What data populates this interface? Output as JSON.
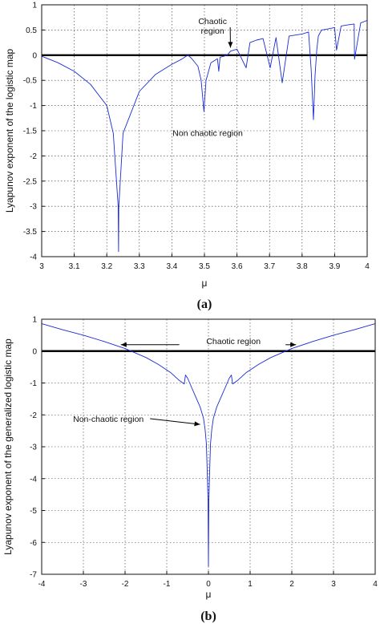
{
  "chart_data": [
    {
      "type": "line",
      "panel_caption": "(a)",
      "xlabel": "μ",
      "ylabel": "Lyapunov exponent of the logistic map",
      "xlim": [
        3,
        4
      ],
      "ylim": [
        -4,
        1
      ],
      "xticks": [
        "3",
        "3.1",
        "3.2",
        "3.3",
        "3.4",
        "3.5",
        "3.6",
        "3.7",
        "3.8",
        "3.9",
        "4"
      ],
      "yticks": [
        "1",
        "0.5",
        "0",
        "-0.5",
        "-1",
        "-1.5",
        "-2",
        "-2.5",
        "-3",
        "-3.5",
        "-4"
      ],
      "grid": true,
      "reference_line_y": 0,
      "annotations": [
        {
          "text": "Chaotic region",
          "lines": [
            "Chaotic",
            "region"
          ],
          "arrow_to": [
            3.58,
            0.15
          ]
        },
        {
          "text": "Non chaotic region",
          "at": [
            3.51,
            -1.6
          ]
        }
      ],
      "series": [
        {
          "color": "#1a2bd6",
          "x": [
            3.0,
            3.05,
            3.1,
            3.15,
            3.2,
            3.22,
            3.235,
            3.2361,
            3.237,
            3.25,
            3.3,
            3.35,
            3.4,
            3.43,
            3.449,
            3.46,
            3.48,
            3.49,
            3.4986,
            3.505,
            3.52,
            3.54,
            3.544,
            3.548,
            3.56,
            3.5699,
            3.58,
            3.6,
            3.628,
            3.64,
            3.66,
            3.68,
            3.702,
            3.72,
            3.739,
            3.76,
            3.78,
            3.8,
            3.82,
            3.828,
            3.835,
            3.84,
            3.845,
            3.85,
            3.86,
            3.88,
            3.9,
            3.906,
            3.92,
            3.94,
            3.96,
            3.961,
            3.98,
            4.0
          ],
          "y": [
            -0.02,
            -0.15,
            -0.32,
            -0.58,
            -1.0,
            -1.55,
            -3.0,
            -3.9,
            -3.0,
            -1.55,
            -0.72,
            -0.38,
            -0.18,
            -0.08,
            0.0,
            -0.06,
            -0.22,
            -0.5,
            -1.12,
            -0.5,
            -0.15,
            -0.07,
            -0.32,
            -0.04,
            -0.02,
            0.0,
            0.08,
            0.12,
            -0.25,
            0.25,
            0.3,
            0.33,
            -0.25,
            0.35,
            -0.55,
            0.38,
            0.4,
            0.42,
            0.46,
            -0.3,
            -1.28,
            -0.4,
            0.1,
            0.38,
            0.5,
            0.52,
            0.55,
            0.1,
            0.58,
            0.6,
            0.62,
            -0.08,
            0.64,
            0.69
          ]
        }
      ]
    },
    {
      "type": "line",
      "panel_caption": "(b)",
      "xlabel": "μ",
      "ylabel": "Lyapunov exponent of the generalized logistic map",
      "xlim": [
        -4,
        4
      ],
      "ylim": [
        -7,
        1
      ],
      "xticks": [
        "-4",
        "-3",
        "-2",
        "-1",
        "0",
        "1",
        "2",
        "3",
        "4"
      ],
      "yticks": [
        "1",
        "0",
        "-1",
        "-2",
        "-3",
        "-4",
        "-5",
        "-6",
        "-7"
      ],
      "grid": true,
      "reference_line_y": 0,
      "annotations": [
        {
          "text": "Chaotic region",
          "arrows_to": [
            [
              -2.1,
              0.2
            ],
            [
              2.1,
              0.2
            ]
          ]
        },
        {
          "text": "Non-chaotic region",
          "arrow_to": [
            -0.2,
            -2.3
          ]
        }
      ],
      "series": [
        {
          "color": "#1a2bd6",
          "x": [
            -4.0,
            -3.5,
            -3.0,
            -2.5,
            -2.0,
            -1.5,
            -1.2,
            -0.9,
            -0.7,
            -0.58,
            -0.55,
            -0.5,
            -0.4,
            -0.3,
            -0.2,
            -0.12,
            -0.08,
            -0.05,
            -0.03,
            -0.01,
            0.0,
            0.01,
            0.03,
            0.05,
            0.08,
            0.12,
            0.2,
            0.3,
            0.4,
            0.5,
            0.55,
            0.58,
            0.7,
            0.9,
            1.2,
            1.5,
            2.0,
            2.5,
            3.0,
            3.5,
            4.0
          ],
          "y": [
            0.86,
            0.67,
            0.5,
            0.3,
            0.08,
            -0.2,
            -0.42,
            -0.68,
            -0.92,
            -1.03,
            -0.75,
            -0.85,
            -1.15,
            -1.45,
            -1.75,
            -2.1,
            -2.45,
            -2.9,
            -3.7,
            -4.7,
            -6.75,
            -4.7,
            -3.7,
            -2.9,
            -2.45,
            -2.1,
            -1.75,
            -1.45,
            -1.15,
            -0.85,
            -0.75,
            -1.03,
            -0.92,
            -0.68,
            -0.42,
            -0.2,
            0.08,
            0.3,
            0.5,
            0.67,
            0.86
          ]
        }
      ]
    }
  ]
}
